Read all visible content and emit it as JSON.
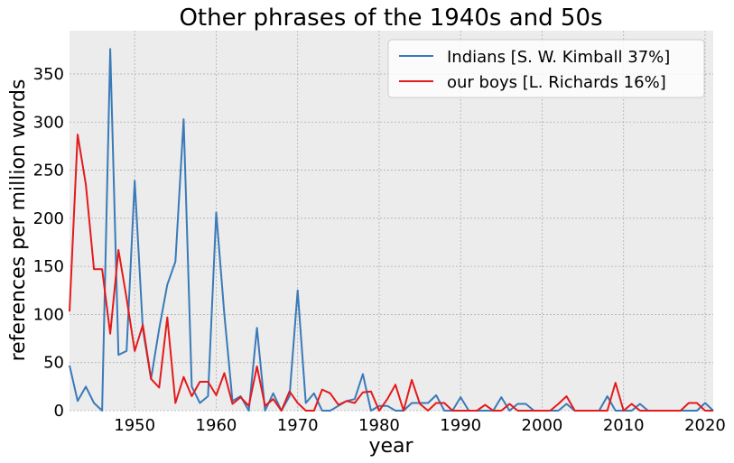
{
  "chart_data": {
    "type": "line",
    "title": "Other phrases of the 1940s and 50s",
    "xlabel": "year",
    "ylabel": "references per million words",
    "xlim": [
      1942,
      2021
    ],
    "ylim": [
      0,
      395
    ],
    "x_ticks": [
      1950,
      1960,
      1970,
      1980,
      1990,
      2000,
      2010,
      2020
    ],
    "y_ticks": [
      0,
      50,
      100,
      150,
      200,
      250,
      300,
      350
    ],
    "grid": true,
    "legend_position": "top-right",
    "series": [
      {
        "name": "Indians [S. W. Kimball 37%]",
        "color": "#3a7ab8",
        "x": [
          1942,
          1943,
          1944,
          1945,
          1946,
          1947,
          1948,
          1949,
          1950,
          1951,
          1952,
          1953,
          1954,
          1955,
          1956,
          1957,
          1958,
          1959,
          1960,
          1961,
          1962,
          1963,
          1964,
          1965,
          1966,
          1967,
          1968,
          1969,
          1970,
          1971,
          1972,
          1973,
          1974,
          1975,
          1976,
          1977,
          1978,
          1979,
          1980,
          1981,
          1982,
          1983,
          1984,
          1985,
          1986,
          1987,
          1988,
          1989,
          1990,
          1991,
          1992,
          1993,
          1994,
          1995,
          1996,
          1997,
          1998,
          1999,
          2000,
          2001,
          2002,
          2003,
          2004,
          2005,
          2006,
          2007,
          2008,
          2009,
          2010,
          2011,
          2012,
          2013,
          2014,
          2015,
          2016,
          2017,
          2018,
          2019,
          2020,
          2021
        ],
        "y": [
          47,
          10,
          25,
          8,
          0,
          376,
          58,
          62,
          239,
          85,
          33,
          85,
          131,
          155,
          303,
          25,
          8,
          15,
          206,
          100,
          10,
          15,
          0,
          86,
          0,
          18,
          0,
          15,
          125,
          8,
          18,
          0,
          0,
          5,
          10,
          12,
          38,
          0,
          5,
          5,
          0,
          0,
          8,
          8,
          8,
          16,
          0,
          0,
          14,
          0,
          0,
          0,
          0,
          14,
          0,
          7,
          7,
          0,
          0,
          0,
          0,
          7,
          0,
          0,
          0,
          0,
          15,
          0,
          0,
          0,
          7,
          0,
          0,
          0,
          0,
          0,
          0,
          0,
          8,
          0
        ]
      },
      {
        "name": "our boys [L. Richards 16%]",
        "color": "#e41a1c",
        "x": [
          1942,
          1943,
          1944,
          1945,
          1946,
          1947,
          1948,
          1949,
          1950,
          1951,
          1952,
          1953,
          1954,
          1955,
          1956,
          1957,
          1958,
          1959,
          1960,
          1961,
          1962,
          1963,
          1964,
          1965,
          1966,
          1967,
          1968,
          1969,
          1970,
          1971,
          1972,
          1973,
          1974,
          1975,
          1976,
          1977,
          1978,
          1979,
          1980,
          1981,
          1982,
          1983,
          1984,
          1985,
          1986,
          1987,
          1988,
          1989,
          1990,
          1991,
          1992,
          1993,
          1994,
          1995,
          1996,
          1997,
          1998,
          1999,
          2000,
          2001,
          2002,
          2003,
          2004,
          2005,
          2006,
          2007,
          2008,
          2009,
          2010,
          2011,
          2012,
          2013,
          2014,
          2015,
          2016,
          2017,
          2018,
          2019,
          2020,
          2021
        ],
        "y": [
          103,
          287,
          235,
          147,
          147,
          80,
          167,
          117,
          62,
          89,
          33,
          24,
          97,
          8,
          35,
          15,
          30,
          30,
          16,
          39,
          7,
          14,
          5,
          46,
          5,
          12,
          0,
          20,
          8,
          0,
          0,
          22,
          18,
          6,
          10,
          8,
          19,
          20,
          0,
          12,
          27,
          0,
          32,
          7,
          0,
          8,
          8,
          0,
          0,
          0,
          0,
          6,
          0,
          0,
          7,
          0,
          0,
          0,
          0,
          0,
          7,
          15,
          0,
          0,
          0,
          0,
          0,
          29,
          0,
          7,
          0,
          0,
          0,
          0,
          0,
          0,
          8,
          8,
          0,
          0
        ]
      }
    ]
  }
}
